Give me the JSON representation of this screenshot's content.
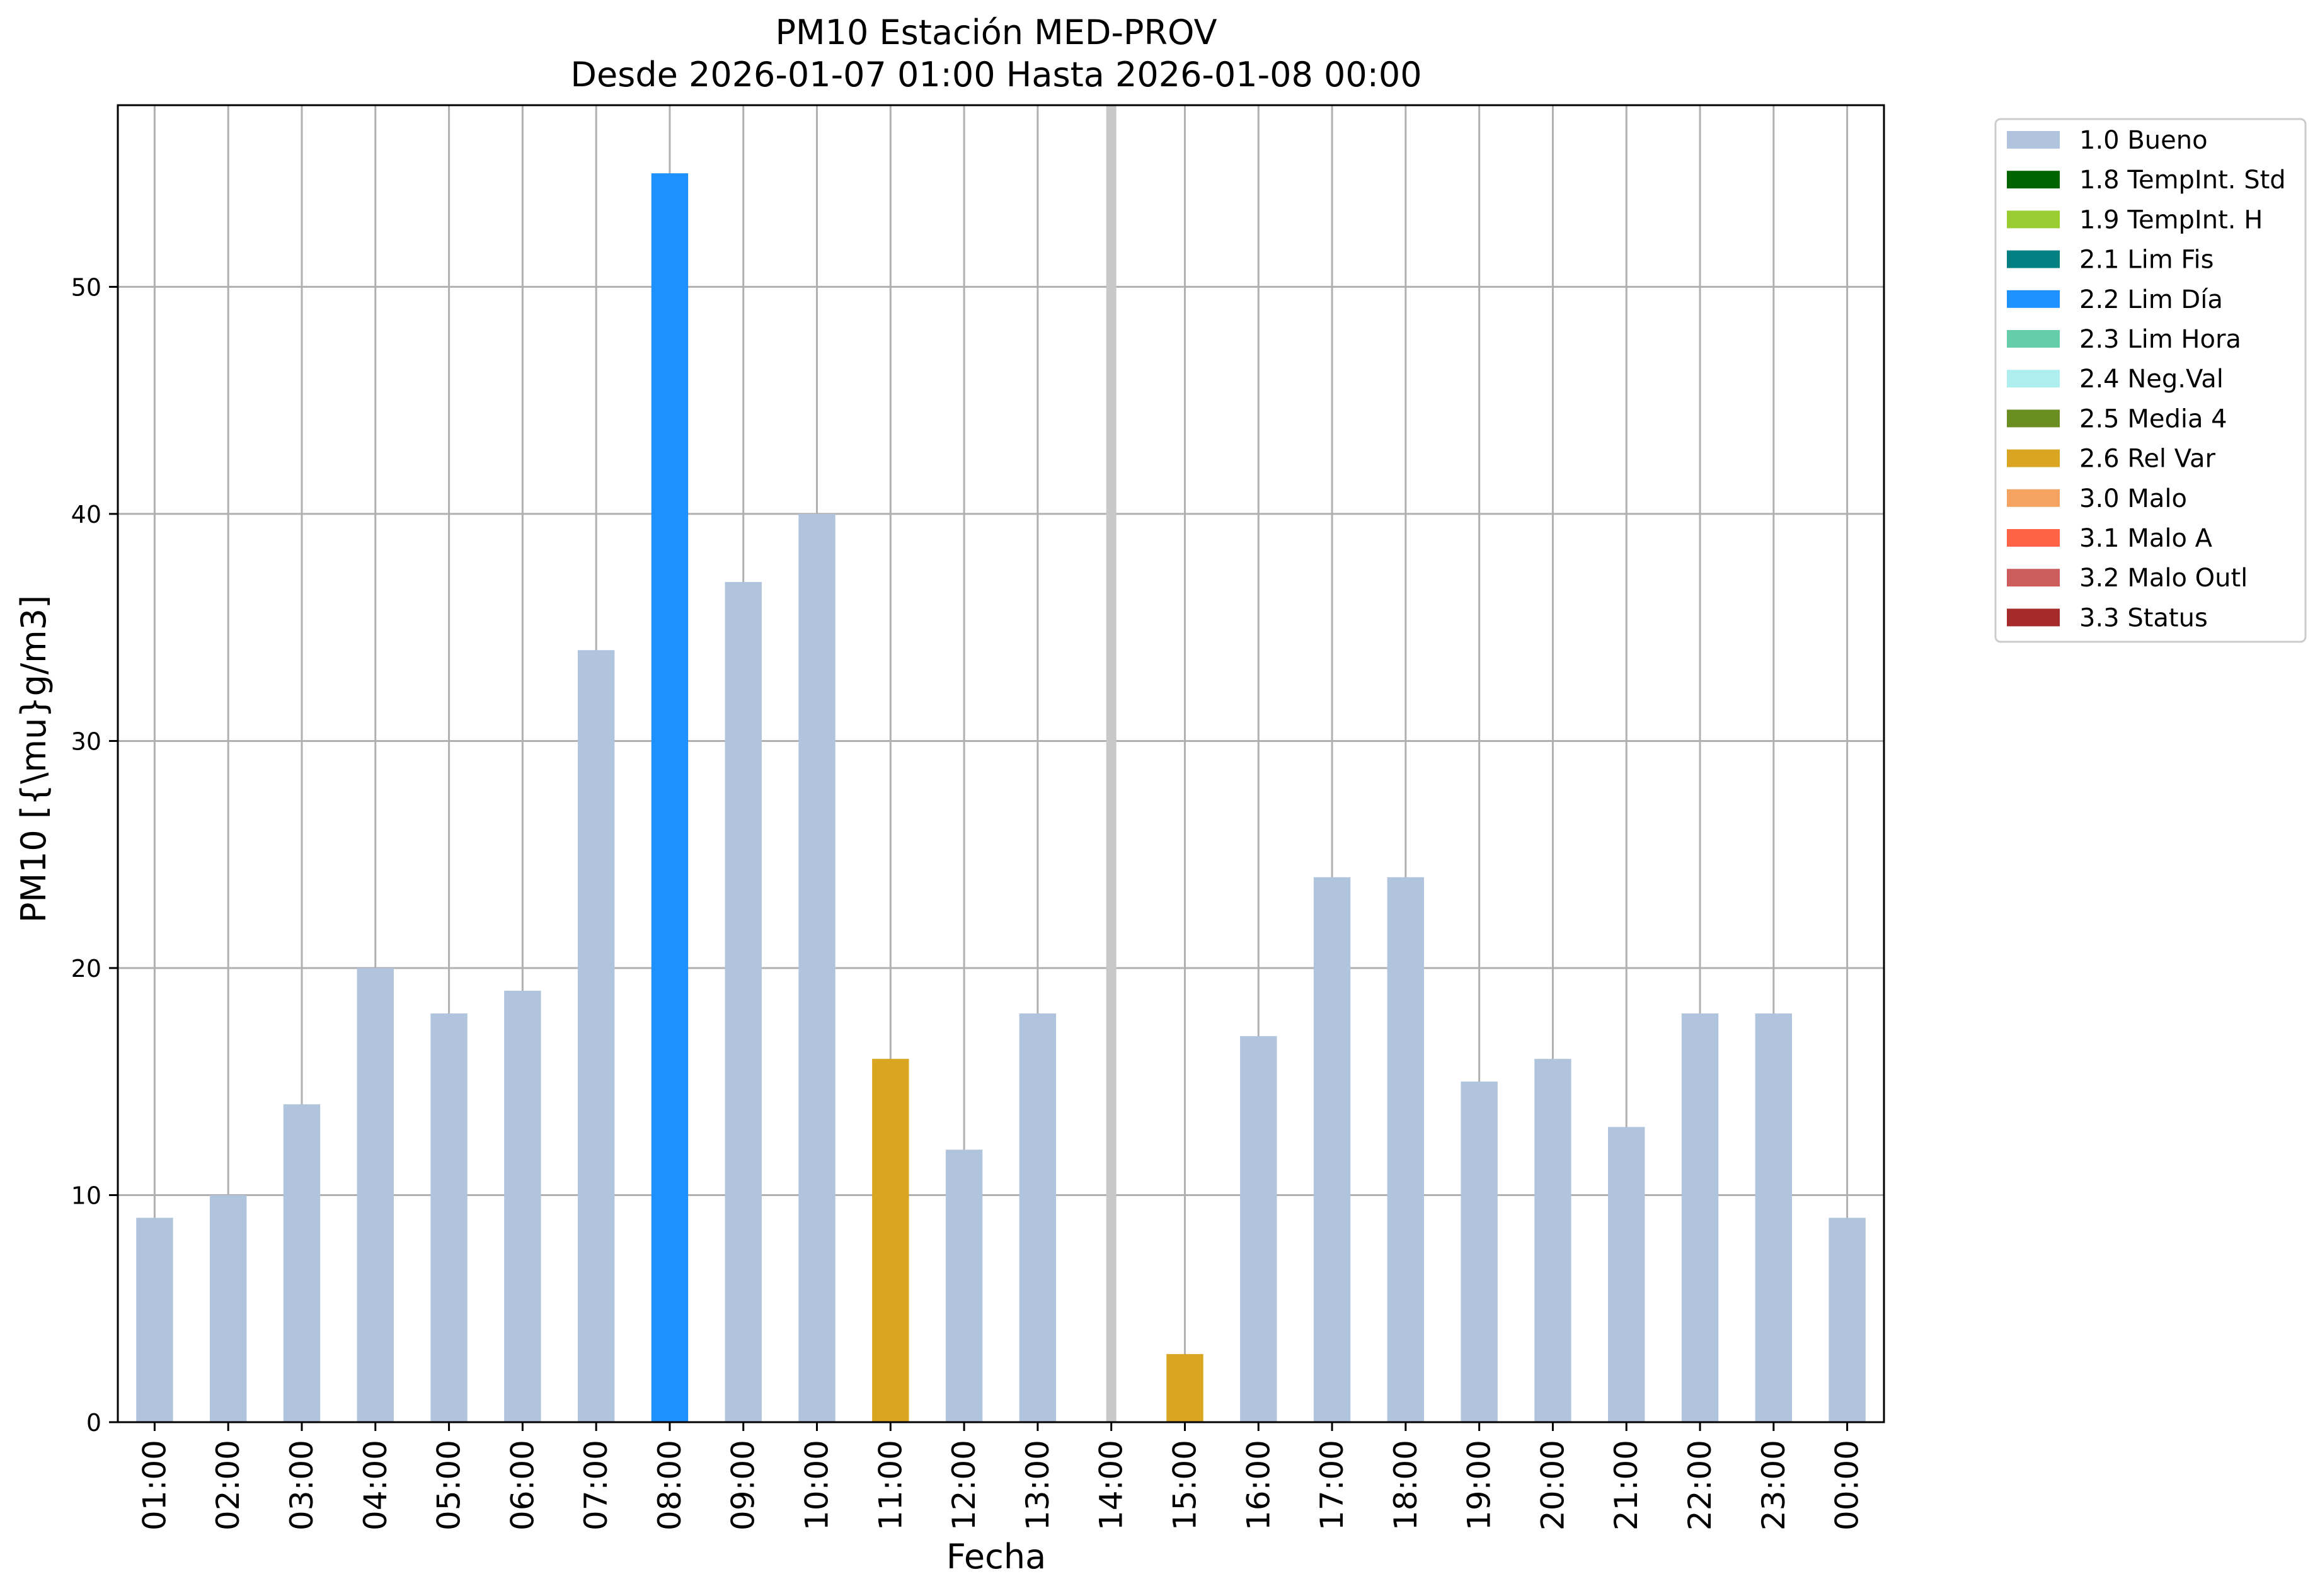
{
  "chart_data": {
    "type": "bar",
    "title": "PM10 Estación MED-PROV",
    "subtitle": "Desde 2026-01-07 01:00 Hasta 2026-01-08 00:00",
    "xlabel": "Fecha",
    "ylabel": "PM10 [{\\mu}g/m3]",
    "ylim": [
      0,
      58
    ],
    "yticks": [
      0,
      10,
      20,
      30,
      40,
      50
    ],
    "grid": true,
    "legend_position": "outside-top-right",
    "categories": [
      "01:00",
      "02:00",
      "03:00",
      "04:00",
      "05:00",
      "06:00",
      "07:00",
      "08:00",
      "09:00",
      "10:00",
      "11:00",
      "12:00",
      "13:00",
      "14:00",
      "15:00",
      "16:00",
      "17:00",
      "18:00",
      "19:00",
      "20:00",
      "21:00",
      "22:00",
      "23:00",
      "00:00"
    ],
    "values": [
      9,
      10,
      14,
      20,
      18,
      19,
      34,
      55,
      37,
      40,
      16,
      12,
      18,
      null,
      3,
      17,
      24,
      24,
      15,
      16,
      13,
      18,
      18,
      9
    ],
    "flags": [
      "1.0 Bueno",
      "1.0 Bueno",
      "1.0 Bueno",
      "1.0 Bueno",
      "1.0 Bueno",
      "1.0 Bueno",
      "1.0 Bueno",
      "2.2 Lim Día",
      "1.0 Bueno",
      "1.0 Bueno",
      "2.6 Rel Var",
      "1.0 Bueno",
      "1.0 Bueno",
      null,
      "2.6 Rel Var",
      "1.0 Bueno",
      "1.0 Bueno",
      "1.0 Bueno",
      "1.0 Bueno",
      "1.0 Bueno",
      "1.0 Bueno",
      "1.0 Bueno",
      "1.0 Bueno",
      "1.0 Bueno"
    ],
    "legend": [
      {
        "label": "1.0 Bueno",
        "color": "#b0c4de"
      },
      {
        "label": "1.8 TempInt. Std",
        "color": "#006400"
      },
      {
        "label": "1.9 TempInt. H",
        "color": "#9acd32"
      },
      {
        "label": "2.1 Lim Fis",
        "color": "#008080"
      },
      {
        "label": "2.2 Lim Día",
        "color": "#1e90ff"
      },
      {
        "label": "2.3 Lim Hora",
        "color": "#66cdaa"
      },
      {
        "label": "2.4 Neg.Val",
        "color": "#afeeee"
      },
      {
        "label": "2.5 Media 4",
        "color": "#6b8e23"
      },
      {
        "label": "2.6 Rel Var",
        "color": "#daa520"
      },
      {
        "label": "3.0 Malo",
        "color": "#f4a460"
      },
      {
        "label": "3.1 Malo A",
        "color": "#ff6347"
      },
      {
        "label": "3.2 Malo Outl",
        "color": "#cd5c5c"
      },
      {
        "label": "3.3 Status",
        "color": "#a52a2a"
      }
    ],
    "missing_marker_category": "14:00",
    "missing_marker_color": "#c8c8c8"
  }
}
